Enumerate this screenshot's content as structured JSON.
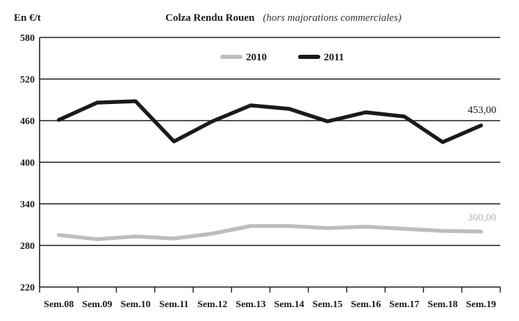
{
  "header": {
    "unit": "En €/t",
    "title": "Colza Rendu Rouen",
    "subtitle": "(hors majorations commerciales)"
  },
  "chart_data": {
    "type": "line",
    "title": "Colza Rendu Rouen",
    "subtitle": "(hors majorations commerciales)",
    "ylabel": "En €/t",
    "xlabel": "",
    "ylim": [
      220,
      580
    ],
    "yticks": [
      220,
      280,
      340,
      400,
      460,
      520,
      580
    ],
    "grid": true,
    "legend_position": "top-center",
    "categories": [
      "Sem.08",
      "Sem.09",
      "Sem.10",
      "Sem.11",
      "Sem.12",
      "Sem.13",
      "Sem.14",
      "Sem.15",
      "Sem.16",
      "Sem.17",
      "Sem.18",
      "Sem.19"
    ],
    "series": [
      {
        "name": "2010",
        "color": "#bdbdbd",
        "values": [
          295,
          289,
          293,
          290,
          297,
          308,
          308,
          305,
          307,
          304,
          301,
          300
        ],
        "end_label": "300,00"
      },
      {
        "name": "2011",
        "color": "#1a1a1a",
        "values": [
          461,
          486,
          488,
          430,
          459,
          482,
          477,
          459,
          472,
          466,
          429,
          453
        ],
        "end_label": "453,00"
      }
    ]
  }
}
